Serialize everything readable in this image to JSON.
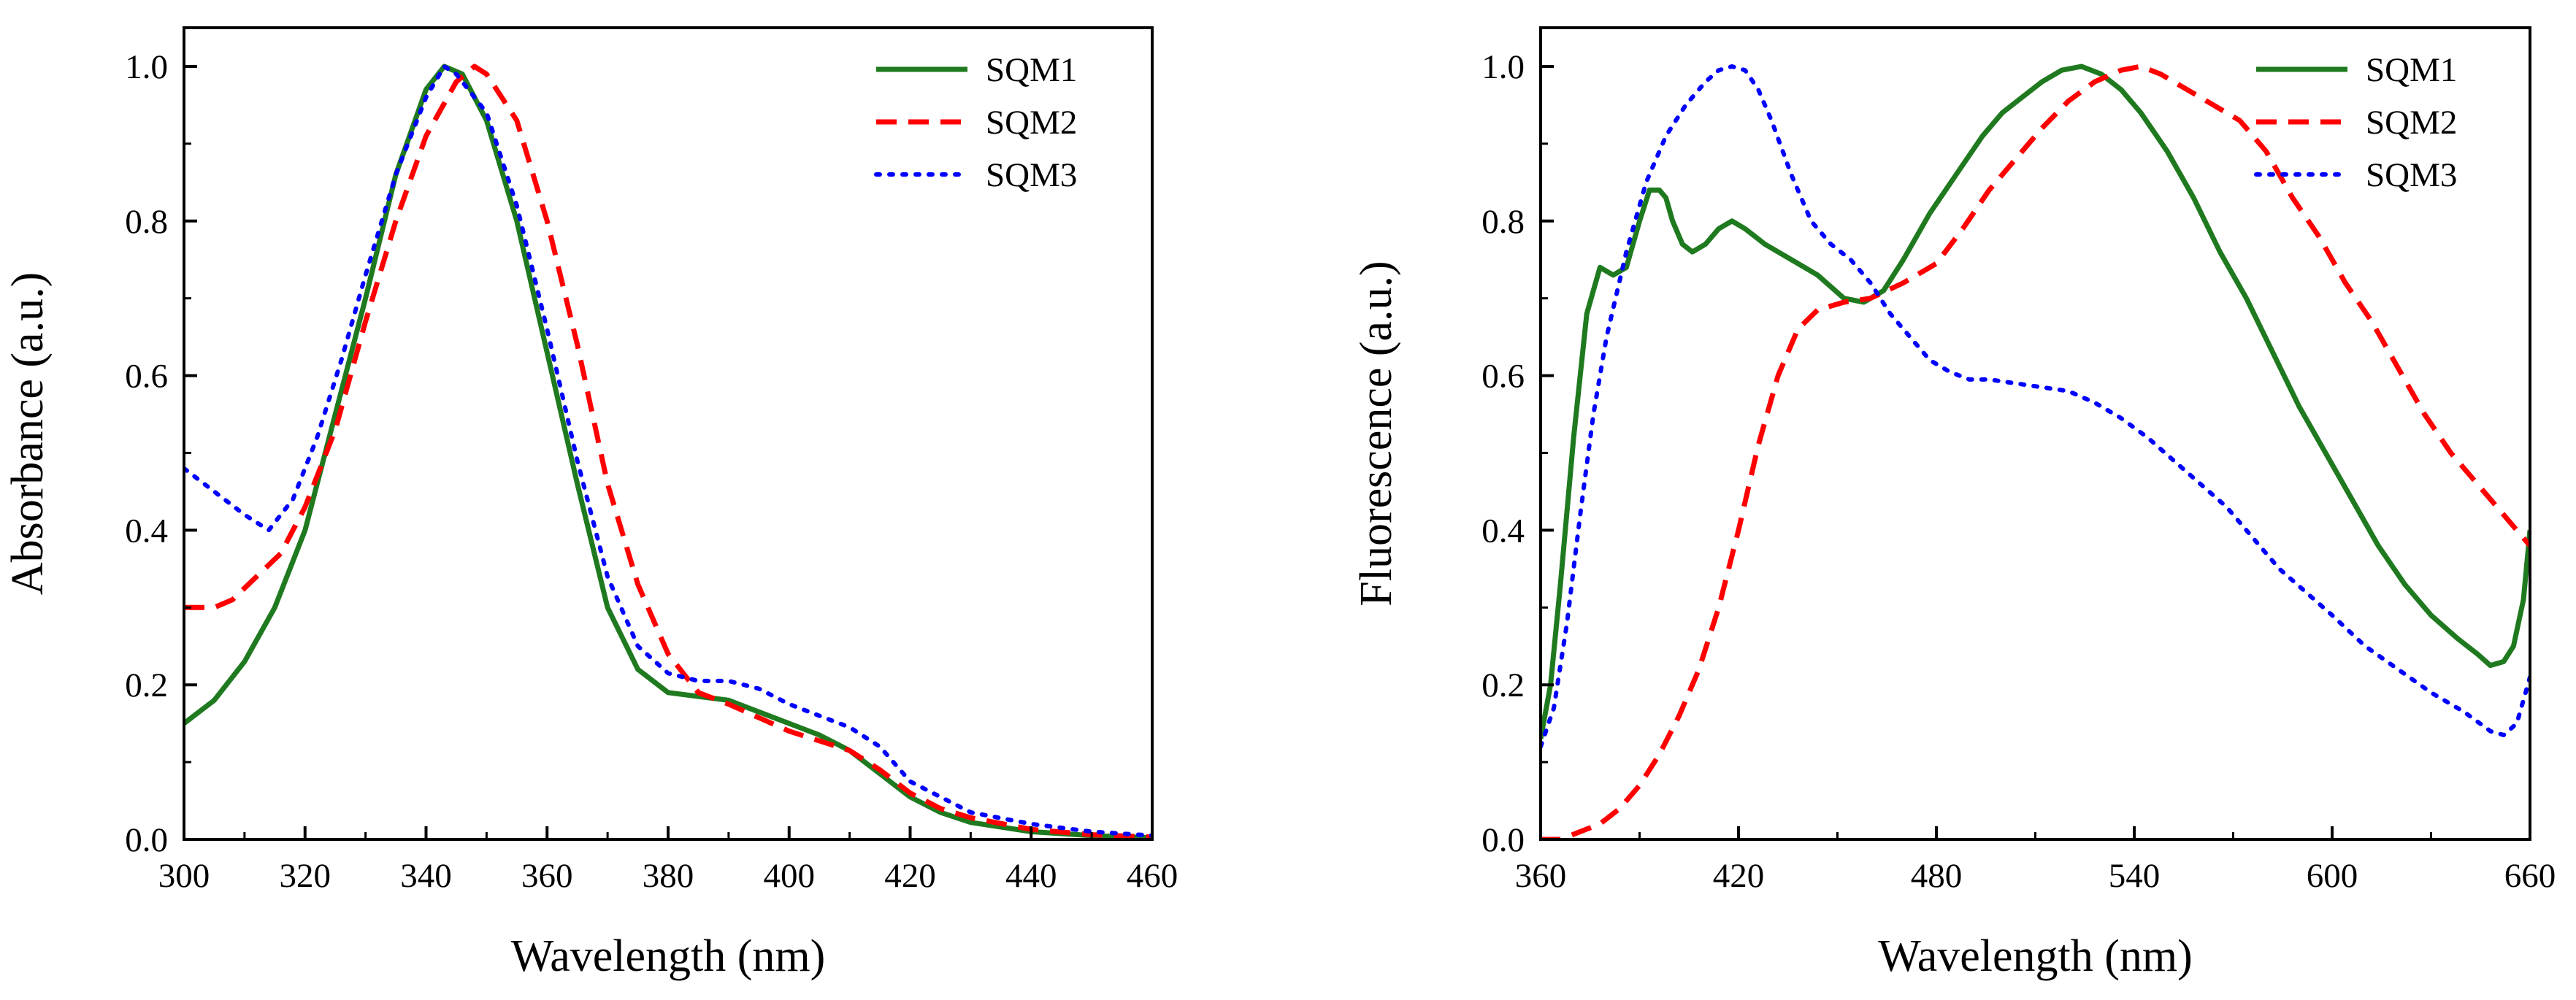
{
  "chart_data": [
    {
      "type": "line",
      "title": "",
      "xlabel": "Wavelength (nm)",
      "ylabel": "Absorbance (a.u.)",
      "xlim": [
        300,
        460
      ],
      "ylim": [
        0.0,
        1.05
      ],
      "xticks": [
        300,
        320,
        340,
        360,
        380,
        400,
        420,
        440,
        460
      ],
      "xtick_labels": [
        "300",
        "320",
        "340",
        "360",
        "380",
        "400",
        "420",
        "440",
        "460"
      ],
      "yticks": [
        0.0,
        0.2,
        0.4,
        0.6,
        0.8,
        1.0
      ],
      "ytick_labels": [
        "0.0",
        "0.2",
        "0.4",
        "0.6",
        "0.8",
        "1.0"
      ],
      "grid": false,
      "legend_position": "top-right",
      "series": [
        {
          "name": "SQM1",
          "style": "solid",
          "color": "#1f7a1f",
          "x": [
            300,
            305,
            310,
            315,
            320,
            325,
            330,
            335,
            340,
            343,
            346,
            350,
            355,
            360,
            365,
            370,
            375,
            380,
            385,
            390,
            395,
            400,
            405,
            410,
            415,
            420,
            425,
            430,
            440,
            450,
            460
          ],
          "y": [
            0.15,
            0.18,
            0.23,
            0.3,
            0.4,
            0.55,
            0.7,
            0.86,
            0.97,
            1.0,
            0.99,
            0.93,
            0.8,
            0.63,
            0.46,
            0.3,
            0.22,
            0.19,
            0.185,
            0.18,
            0.165,
            0.15,
            0.135,
            0.115,
            0.085,
            0.055,
            0.035,
            0.022,
            0.01,
            0.005,
            0.002
          ]
        },
        {
          "name": "SQM2",
          "style": "dashed",
          "color": "#ff0000",
          "x": [
            300,
            305,
            308,
            312,
            316,
            320,
            325,
            330,
            335,
            340,
            345,
            348,
            350,
            355,
            360,
            365,
            370,
            375,
            380,
            385,
            390,
            400,
            410,
            415,
            420,
            425,
            430,
            440,
            450,
            460
          ],
          "y": [
            0.3,
            0.3,
            0.31,
            0.34,
            0.37,
            0.43,
            0.53,
            0.67,
            0.8,
            0.91,
            0.98,
            1.0,
            0.99,
            0.93,
            0.8,
            0.64,
            0.46,
            0.33,
            0.24,
            0.19,
            0.175,
            0.14,
            0.115,
            0.09,
            0.06,
            0.04,
            0.028,
            0.013,
            0.006,
            0.003
          ]
        },
        {
          "name": "SQM3",
          "style": "dotted",
          "color": "#0000ff",
          "x": [
            300,
            305,
            310,
            314,
            318,
            322,
            326,
            330,
            335,
            340,
            343,
            345,
            350,
            355,
            360,
            365,
            370,
            375,
            380,
            385,
            390,
            395,
            400,
            405,
            410,
            415,
            420,
            430,
            440,
            450,
            460
          ],
          "y": [
            0.48,
            0.45,
            0.42,
            0.4,
            0.44,
            0.52,
            0.62,
            0.73,
            0.86,
            0.96,
            1.0,
            0.99,
            0.94,
            0.82,
            0.66,
            0.49,
            0.34,
            0.25,
            0.215,
            0.205,
            0.205,
            0.195,
            0.175,
            0.16,
            0.145,
            0.12,
            0.075,
            0.035,
            0.02,
            0.01,
            0.005
          ]
        }
      ]
    },
    {
      "type": "line",
      "title": "",
      "xlabel": "Wavelength (nm)",
      "ylabel": "Fluorescence (a.u.)",
      "xlim": [
        360,
        660
      ],
      "ylim": [
        0.0,
        1.05
      ],
      "xticks": [
        360,
        420,
        480,
        540,
        600,
        660
      ],
      "xtick_labels": [
        "360",
        "420",
        "480",
        "540",
        "600",
        "660"
      ],
      "yticks": [
        0.0,
        0.2,
        0.4,
        0.6,
        0.8,
        1.0
      ],
      "ytick_labels": [
        "0.0",
        "0.2",
        "0.4",
        "0.6",
        "0.8",
        "1.0"
      ],
      "grid": false,
      "legend_position": "top-right",
      "series": [
        {
          "name": "SQM1",
          "style": "solid",
          "color": "#1f7a1f",
          "x": [
            360,
            363,
            366,
            370,
            374,
            378,
            382,
            386,
            390,
            393,
            396,
            398,
            400,
            403,
            406,
            410,
            414,
            418,
            422,
            428,
            436,
            444,
            452,
            458,
            464,
            470,
            478,
            486,
            494,
            500,
            506,
            512,
            518,
            524,
            530,
            536,
            542,
            550,
            558,
            566,
            574,
            582,
            590,
            598,
            606,
            614,
            622,
            630,
            638,
            644,
            648,
            652,
            655,
            658,
            660
          ],
          "y": [
            0.13,
            0.2,
            0.33,
            0.52,
            0.68,
            0.74,
            0.73,
            0.74,
            0.8,
            0.84,
            0.84,
            0.83,
            0.8,
            0.77,
            0.76,
            0.77,
            0.79,
            0.8,
            0.79,
            0.77,
            0.75,
            0.73,
            0.7,
            0.695,
            0.71,
            0.75,
            0.81,
            0.86,
            0.91,
            0.94,
            0.96,
            0.98,
            0.995,
            1.0,
            0.99,
            0.97,
            0.94,
            0.89,
            0.83,
            0.76,
            0.7,
            0.63,
            0.56,
            0.5,
            0.44,
            0.38,
            0.33,
            0.29,
            0.26,
            0.24,
            0.225,
            0.23,
            0.25,
            0.31,
            0.4
          ]
        },
        {
          "name": "SQM2",
          "style": "dashed",
          "color": "#ff0000",
          "x": [
            360,
            366,
            372,
            378,
            384,
            390,
            396,
            402,
            408,
            414,
            420,
            426,
            432,
            438,
            444,
            452,
            460,
            470,
            480,
            488,
            496,
            504,
            512,
            520,
            528,
            536,
            542,
            548,
            556,
            564,
            572,
            580,
            588,
            596,
            604,
            612,
            620,
            628,
            636,
            644,
            652,
            660
          ],
          "y": [
            0.0,
            0.0,
            0.01,
            0.02,
            0.04,
            0.07,
            0.11,
            0.16,
            0.22,
            0.3,
            0.4,
            0.51,
            0.6,
            0.66,
            0.685,
            0.695,
            0.7,
            0.72,
            0.745,
            0.79,
            0.84,
            0.88,
            0.92,
            0.955,
            0.98,
            0.995,
            1.0,
            0.99,
            0.97,
            0.95,
            0.93,
            0.89,
            0.83,
            0.78,
            0.72,
            0.67,
            0.61,
            0.55,
            0.5,
            0.46,
            0.42,
            0.38
          ]
        },
        {
          "name": "SQM3",
          "style": "dotted",
          "color": "#0000ff",
          "x": [
            360,
            364,
            368,
            372,
            376,
            380,
            386,
            392,
            398,
            404,
            410,
            414,
            418,
            422,
            426,
            430,
            436,
            442,
            448,
            454,
            460,
            466,
            472,
            478,
            484,
            490,
            496,
            504,
            512,
            520,
            528,
            536,
            544,
            552,
            560,
            568,
            576,
            584,
            592,
            600,
            610,
            620,
            630,
            640,
            648,
            652,
            656,
            660
          ],
          "y": [
            0.12,
            0.17,
            0.28,
            0.42,
            0.55,
            0.65,
            0.76,
            0.85,
            0.91,
            0.95,
            0.98,
            0.995,
            1.0,
            0.995,
            0.97,
            0.93,
            0.86,
            0.8,
            0.77,
            0.75,
            0.72,
            0.68,
            0.65,
            0.62,
            0.605,
            0.595,
            0.595,
            0.59,
            0.585,
            0.58,
            0.565,
            0.545,
            0.52,
            0.49,
            0.46,
            0.43,
            0.39,
            0.35,
            0.32,
            0.29,
            0.25,
            0.22,
            0.19,
            0.165,
            0.14,
            0.135,
            0.15,
            0.21
          ]
        }
      ]
    }
  ]
}
